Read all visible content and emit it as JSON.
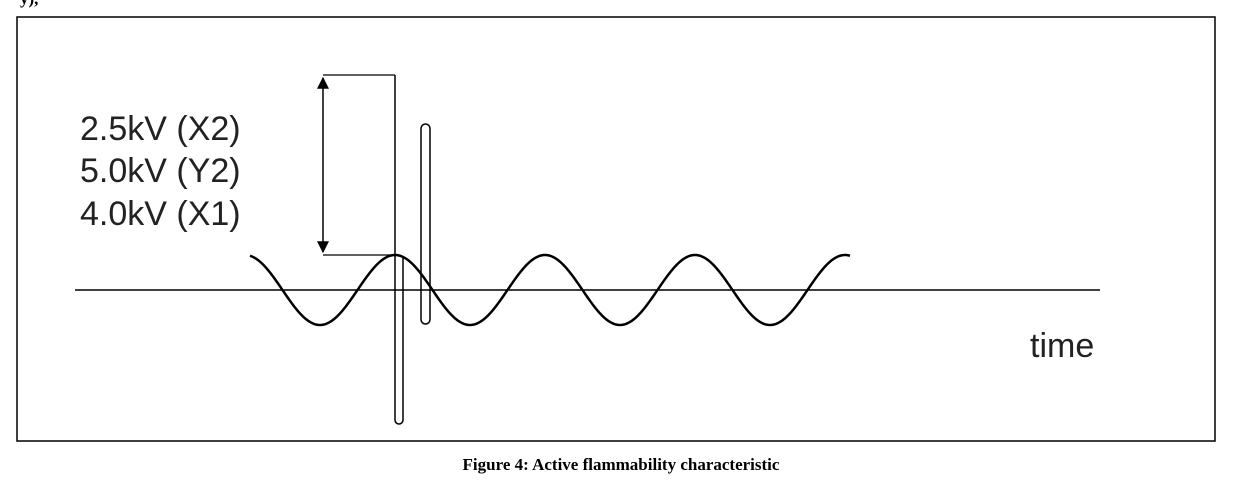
{
  "page_fragment": "y),",
  "figure": {
    "labels": [
      "2.5kV (X2)",
      "5.0kV (Y2)",
      "4.0kV (X1)"
    ],
    "axis_label": "time",
    "caption": "Figure 4: Active flammability characteristic"
  }
}
